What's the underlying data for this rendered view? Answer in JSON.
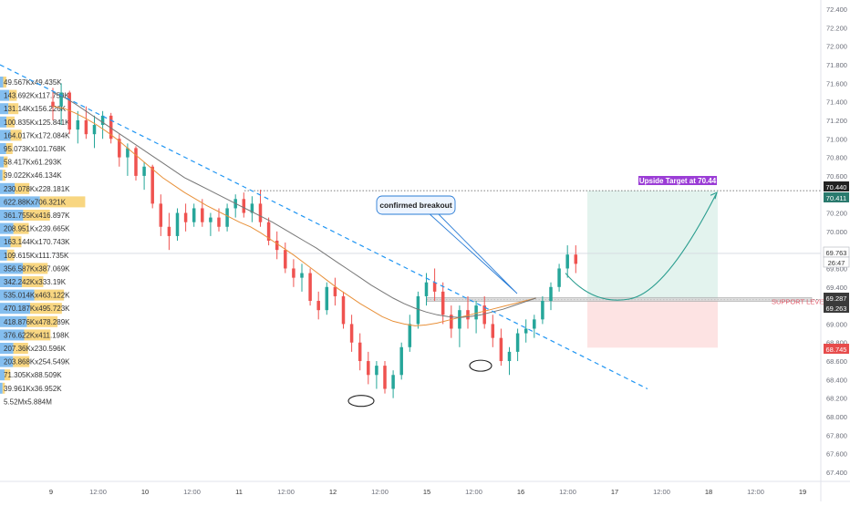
{
  "chart_data": {
    "type": "candlestick",
    "instrument": "",
    "y_axis_ticks": [
      "72.400",
      "72.200",
      "72.000",
      "71.800",
      "71.600",
      "71.400",
      "71.200",
      "71.000",
      "70.800",
      "70.600",
      "70.400",
      "70.200",
      "70.000",
      "69.800",
      "69.600",
      "69.400",
      "69.200",
      "69.000",
      "68.800",
      "68.600",
      "68.400",
      "68.200",
      "68.000",
      "67.800",
      "67.600",
      "67.400"
    ],
    "ylim": [
      67.35,
      72.45
    ],
    "x_axis_ticks": [
      "9",
      "12:00",
      "10",
      "12:00",
      "11",
      "12:00",
      "12",
      "12:00",
      "15",
      "12:00",
      "16",
      "12:00",
      "17",
      "12:00",
      "18",
      "12:00",
      "19"
    ],
    "price_badges": [
      {
        "value": "70.440",
        "color": "#222222"
      },
      {
        "value": "70.411",
        "color": "#2a7a6e"
      },
      {
        "value": "69.763",
        "color": "#ffffff",
        "text_color": "#333333",
        "bordered": true
      },
      {
        "value": "26:47",
        "color": "#ffffff",
        "text_color": "#333333",
        "bordered": true
      },
      {
        "value": "69.287",
        "color": "#3a3a3a"
      },
      {
        "value": "69.263",
        "color": "#3a3a3a"
      },
      {
        "value": "68.745",
        "color": "#e74c4c"
      }
    ],
    "volume_profile": [
      {
        "label": "49.567Kx49.435K",
        "buy": 49.567,
        "sell": 49.435
      },
      {
        "label": "143.692Kx117.759K",
        "buy": 143.692,
        "sell": 117.759
      },
      {
        "label": "131.14Kx156.226K",
        "buy": 131.14,
        "sell": 156.226
      },
      {
        "label": "100.835Kx125.841K",
        "buy": 100.835,
        "sell": 125.841
      },
      {
        "label": "164.017Kx172.084K",
        "buy": 164.017,
        "sell": 172.084
      },
      {
        "label": "95.073Kx101.768K",
        "buy": 95.073,
        "sell": 101.768
      },
      {
        "label": "58.417Kx61.293K",
        "buy": 58.417,
        "sell": 61.293
      },
      {
        "label": "39.022Kx46.134K",
        "buy": 39.022,
        "sell": 46.134
      },
      {
        "label": "230.078Kx228.181K",
        "buy": 230.078,
        "sell": 228.181
      },
      {
        "label": "622.88Kx706.321K",
        "buy": 622.88,
        "sell": 706.321
      },
      {
        "label": "361.755Kx416.897K",
        "buy": 361.755,
        "sell": 416.897
      },
      {
        "label": "208.951Kx239.665K",
        "buy": 208.951,
        "sell": 239.665
      },
      {
        "label": "163.144Kx170.743K",
        "buy": 163.144,
        "sell": 170.743
      },
      {
        "label": "109.615Kx111.735K",
        "buy": 109.615,
        "sell": 111.735
      },
      {
        "label": "356.587Kx387.069K",
        "buy": 356.587,
        "sell": 387.069
      },
      {
        "label": "342.242Kx333.19K",
        "buy": 342.242,
        "sell": 333.19
      },
      {
        "label": "535.014Kx463.122K",
        "buy": 535.014,
        "sell": 463.122
      },
      {
        "label": "470.187Kx495.723K",
        "buy": 470.187,
        "sell": 495.723
      },
      {
        "label": "418.876Kx478.289K",
        "buy": 418.876,
        "sell": 478.289
      },
      {
        "label": "376.622Kx411.198K",
        "buy": 376.622,
        "sell": 411.198
      },
      {
        "label": "207.36Kx230.596K",
        "buy": 207.36,
        "sell": 230.596
      },
      {
        "label": "203.868Kx254.549K",
        "buy": 203.868,
        "sell": 254.549
      },
      {
        "label": "71.305Kx88.509K",
        "buy": 71.305,
        "sell": 88.509
      },
      {
        "label": "39.961Kx36.952K",
        "buy": 39.961,
        "sell": 36.952
      },
      {
        "label": "5.52Mx5.884M",
        "buy": 5520,
        "sell": 5884
      }
    ],
    "volume_profile_max": 720,
    "series": [
      {
        "kind": "ohlc",
        "values": [
          [
            71.4,
            71.55,
            71.2,
            71.35
          ],
          [
            71.35,
            71.6,
            71.15,
            71.5
          ],
          [
            71.5,
            71.52,
            71.05,
            71.1
          ],
          [
            71.1,
            71.3,
            70.95,
            71.2
          ],
          [
            71.2,
            71.35,
            71.0,
            71.05
          ],
          [
            71.05,
            71.25,
            70.9,
            71.15
          ],
          [
            71.15,
            71.3,
            71.0,
            71.25
          ],
          [
            71.25,
            71.28,
            70.95,
            71.0
          ],
          [
            71.0,
            71.05,
            70.7,
            70.8
          ],
          [
            70.8,
            70.95,
            70.6,
            70.9
          ],
          [
            70.9,
            70.92,
            70.55,
            70.6
          ],
          [
            70.6,
            70.75,
            70.45,
            70.7
          ],
          [
            70.7,
            70.72,
            70.25,
            70.3
          ],
          [
            70.3,
            70.4,
            69.95,
            70.05
          ],
          [
            70.05,
            70.2,
            69.8,
            69.95
          ],
          [
            69.95,
            70.25,
            69.9,
            70.2
          ],
          [
            70.2,
            70.3,
            70.0,
            70.1
          ],
          [
            70.1,
            70.3,
            70.05,
            70.25
          ],
          [
            70.25,
            70.35,
            70.05,
            70.1
          ],
          [
            70.1,
            70.2,
            69.95,
            70.15
          ],
          [
            70.15,
            70.25,
            70.0,
            70.05
          ],
          [
            70.05,
            70.3,
            70.0,
            70.25
          ],
          [
            70.25,
            70.4,
            70.15,
            70.35
          ],
          [
            70.35,
            70.42,
            70.15,
            70.2
          ],
          [
            70.2,
            70.38,
            70.1,
            70.3
          ],
          [
            70.3,
            70.45,
            70.05,
            70.1
          ],
          [
            70.1,
            70.15,
            69.85,
            69.9
          ],
          [
            69.9,
            70.0,
            69.7,
            69.8
          ],
          [
            69.8,
            69.88,
            69.55,
            69.6
          ],
          [
            69.6,
            69.7,
            69.4,
            69.5
          ],
          [
            69.5,
            69.65,
            69.35,
            69.55
          ],
          [
            69.55,
            69.6,
            69.2,
            69.25
          ],
          [
            69.25,
            69.35,
            69.05,
            69.15
          ],
          [
            69.15,
            69.45,
            69.1,
            69.4
          ],
          [
            69.4,
            69.5,
            69.2,
            69.3
          ],
          [
            69.3,
            69.35,
            68.95,
            69.0
          ],
          [
            69.0,
            69.1,
            68.7,
            68.8
          ],
          [
            68.8,
            68.9,
            68.5,
            68.6
          ],
          [
            68.6,
            68.7,
            68.35,
            68.45
          ],
          [
            68.45,
            68.6,
            68.3,
            68.55
          ],
          [
            68.55,
            68.6,
            68.25,
            68.3
          ],
          [
            68.3,
            68.5,
            68.2,
            68.45
          ],
          [
            68.45,
            68.8,
            68.4,
            68.75
          ],
          [
            68.75,
            69.1,
            68.7,
            69.0
          ],
          [
            69.0,
            69.35,
            68.95,
            69.3
          ],
          [
            69.3,
            69.55,
            69.2,
            69.45
          ],
          [
            69.45,
            69.6,
            69.25,
            69.35
          ],
          [
            69.35,
            69.45,
            69.0,
            69.1
          ],
          [
            69.1,
            69.2,
            68.85,
            68.95
          ],
          [
            68.95,
            69.2,
            68.75,
            69.15
          ],
          [
            69.15,
            69.3,
            68.95,
            69.05
          ],
          [
            69.05,
            69.25,
            68.9,
            69.2
          ],
          [
            69.2,
            69.3,
            68.95,
            69.0
          ],
          [
            69.0,
            69.1,
            68.75,
            68.85
          ],
          [
            68.85,
            68.95,
            68.55,
            68.6
          ],
          [
            68.6,
            68.75,
            68.45,
            68.7
          ],
          [
            68.7,
            68.95,
            68.6,
            68.9
          ],
          [
            68.9,
            69.05,
            68.8,
            68.95
          ],
          [
            68.95,
            69.1,
            68.85,
            69.05
          ],
          [
            69.05,
            69.3,
            69.0,
            69.25
          ],
          [
            69.25,
            69.45,
            69.15,
            69.4
          ],
          [
            69.4,
            69.65,
            69.35,
            69.6
          ],
          [
            69.6,
            69.85,
            69.5,
            69.75
          ],
          [
            69.75,
            69.85,
            69.55,
            69.65
          ]
        ]
      },
      {
        "name": "",
        "kind": "ma",
        "color": "#e8913a",
        "values": [
          71.35,
          71.33,
          71.28,
          71.22,
          71.15,
          71.07,
          70.98,
          70.88,
          70.78,
          70.68,
          70.58,
          70.5,
          70.42,
          70.35,
          70.28,
          70.22,
          70.16,
          70.1,
          70.05,
          69.98,
          69.9,
          69.82,
          69.74,
          69.65,
          69.56,
          69.47,
          69.38,
          69.3,
          69.22,
          69.15,
          69.08,
          69.03,
          69.0,
          68.98,
          68.99,
          69.01,
          69.04,
          69.07,
          69.1,
          69.13,
          69.16,
          69.19,
          69.22,
          69.25,
          69.28
        ]
      },
      {
        "name": "",
        "kind": "ma",
        "color": "#777777",
        "values": [
          71.5,
          71.45,
          71.38,
          71.3,
          71.22,
          71.14,
          71.06,
          70.98,
          70.9,
          70.82,
          70.74,
          70.66,
          70.58,
          70.52,
          70.46,
          70.4,
          70.34,
          70.28,
          70.22,
          70.16,
          70.1,
          70.03,
          69.96,
          69.89,
          69.82,
          69.74,
          69.66,
          69.58,
          69.5,
          69.42,
          69.35,
          69.28,
          69.22,
          69.17,
          69.13,
          69.1,
          69.08,
          69.07,
          69.08,
          69.1,
          69.13,
          69.16,
          69.2,
          69.24,
          69.28
        ]
      }
    ],
    "annotations": [
      {
        "kind": "label",
        "text": "confirmed breakout"
      },
      {
        "kind": "label",
        "text": "Upside Target at 70.44",
        "color": "#9b3dd6"
      },
      {
        "kind": "label",
        "text": "SUPPORT LEVEL",
        "color": "#e05a6a"
      },
      {
        "kind": "level",
        "value": 70.44,
        "style": "dotted"
      },
      {
        "kind": "level",
        "value": 69.263,
        "style": "dotted"
      },
      {
        "kind": "level",
        "value": 69.763,
        "style": "solid-light"
      },
      {
        "kind": "trendline",
        "style": "dashed",
        "color": "#2196f3",
        "from": [
          71.8
        ],
        "to": [
          68.3
        ]
      },
      {
        "kind": "target_zone",
        "top": 70.44,
        "bottom": 69.263,
        "color": "#e3f3ee"
      },
      {
        "kind": "stop_zone",
        "top": 69.263,
        "bottom": 68.745,
        "color": "#fde3e3"
      }
    ],
    "grid": false
  }
}
